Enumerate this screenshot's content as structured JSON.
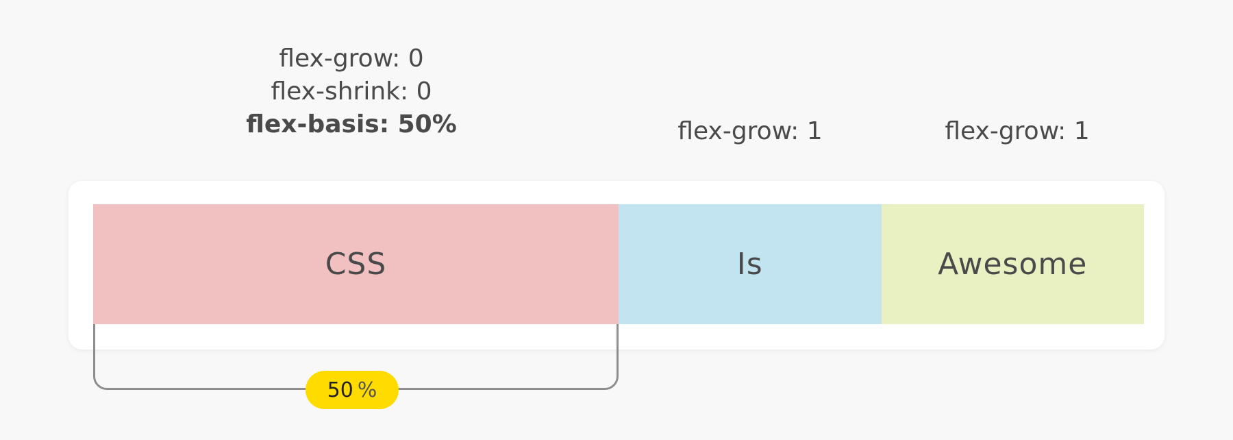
{
  "labels": {
    "css": {
      "grow": "flex-grow: 0",
      "shrink": "flex-shrink: 0",
      "basis": "flex-basis: 50%"
    },
    "is": {
      "grow": "flex-grow: 1"
    },
    "awesome": {
      "grow": "flex-grow: 1"
    }
  },
  "items": [
    {
      "text": "CSS",
      "color": "#f1c0c1"
    },
    {
      "text": "Is",
      "color": "#c2e4f0"
    },
    {
      "text": "Awesome",
      "color": "#e9f1c2"
    }
  ],
  "measure": {
    "value": "50",
    "unit": "%",
    "pill_color": "#ffdb00"
  }
}
